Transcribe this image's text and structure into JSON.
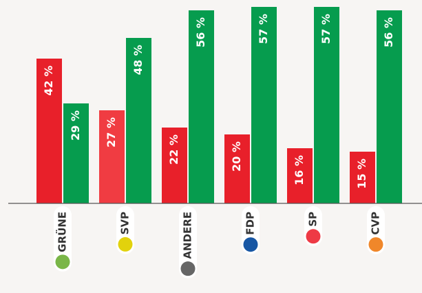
{
  "chart_data": {
    "type": "bar",
    "categories": [
      "GRÜNE",
      "SVP",
      "ANDERE",
      "FDP",
      "SP",
      "CVP"
    ],
    "category_colors": [
      "#7ab648",
      "#e2d20c",
      "#666666",
      "#1857a4",
      "#ee3a45",
      "#f0872a"
    ],
    "series": [
      {
        "color": "#e8202a",
        "colors": [
          "#e8202a",
          "#f03c42",
          "#e8202a",
          "#e8202a",
          "#e8202a",
          "#e8202a"
        ],
        "values": [
          42,
          27,
          22,
          20,
          16,
          15
        ],
        "value_labels": [
          "42 %",
          "27 %",
          "22 %",
          "20 %",
          "16 %",
          "15 %"
        ]
      },
      {
        "color": "#069c4e",
        "values": [
          29,
          48,
          56,
          57,
          57,
          56
        ],
        "value_labels": [
          "29 %",
          "48 %",
          "56 %",
          "57 %",
          "57 %",
          "56 %"
        ]
      }
    ],
    "ylim": [
      0,
      59
    ]
  }
}
